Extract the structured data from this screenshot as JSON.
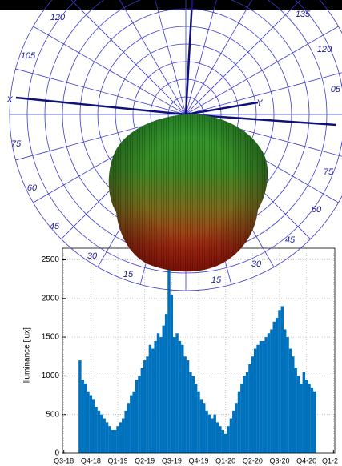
{
  "chart_data": {
    "type": "bar",
    "y_label": "Illuminance [lux]",
    "x": [
      0.6,
      0.7,
      0.8,
      0.9,
      1.0,
      1.1,
      1.2,
      1.3,
      1.4,
      1.5,
      1.6,
      1.7,
      1.8,
      1.9,
      2.0,
      2.1,
      2.2,
      2.3,
      2.4,
      2.5,
      2.6,
      2.7,
      2.8,
      2.9,
      3.0,
      3.1,
      3.2,
      3.3,
      3.4,
      3.5,
      3.6,
      3.7,
      3.8,
      3.9,
      4.0,
      4.1,
      4.2,
      4.3,
      4.4,
      4.5,
      4.6,
      4.7,
      4.8,
      4.9,
      5.0,
      5.1,
      5.2,
      5.3,
      5.4,
      5.5,
      5.6,
      5.7,
      5.8,
      5.9,
      6.0,
      6.1,
      6.2,
      6.3,
      6.4,
      6.5,
      6.6,
      6.7,
      6.8,
      6.9,
      7.0,
      7.1,
      7.2,
      7.3,
      7.4,
      7.5,
      7.6,
      7.7,
      7.8,
      7.9,
      8.0,
      8.1,
      8.2,
      8.3,
      8.4,
      8.5,
      8.6,
      8.7,
      8.8,
      8.9,
      9.0,
      9.1,
      9.2,
      9.3
    ],
    "values": [
      1200,
      950,
      900,
      800,
      750,
      700,
      600,
      550,
      500,
      450,
      400,
      350,
      300,
      300,
      350,
      400,
      450,
      550,
      650,
      750,
      800,
      950,
      1000,
      1100,
      1200,
      1250,
      1400,
      1350,
      1450,
      1550,
      1500,
      1650,
      1800,
      2400,
      2050,
      1500,
      1550,
      1450,
      1400,
      1250,
      1200,
      1050,
      1000,
      900,
      800,
      700,
      650,
      550,
      500,
      450,
      500,
      400,
      350,
      300,
      250,
      350,
      450,
      550,
      650,
      800,
      900,
      1000,
      1050,
      1150,
      1250,
      1350,
      1400,
      1450,
      1450,
      1500,
      1550,
      1600,
      1700,
      1750,
      1850,
      1900,
      1600,
      1500,
      1350,
      1250,
      1100,
      1000,
      900,
      1050,
      950,
      900,
      850,
      800
    ],
    "color": "#0072bd",
    "xlim": [
      -0.05,
      10.05
    ],
    "xticks": [
      {
        "value": 0,
        "label": "Q3-18"
      },
      {
        "value": 1,
        "label": "Q4-18"
      },
      {
        "value": 2,
        "label": "Q1-19"
      },
      {
        "value": 3,
        "label": "Q2-19"
      },
      {
        "value": 4,
        "label": "Q3-19"
      },
      {
        "value": 5,
        "label": "Q4-19"
      },
      {
        "value": 6,
        "label": "Q1-20"
      },
      {
        "value": 7,
        "label": "Q2-20"
      },
      {
        "value": 8,
        "label": "Q3-20"
      },
      {
        "value": 9,
        "label": "Q4-20"
      },
      {
        "value": 10,
        "label": "Q1-2"
      }
    ],
    "ylim": [
      0,
      2650
    ],
    "yticks": [
      0,
      500,
      1000,
      1500,
      2000,
      2500
    ],
    "grid": true
  },
  "polar": {
    "labels": [
      "120",
      "135",
      "105",
      "120",
      "05",
      "X",
      "75",
      "75",
      "60",
      "60",
      "45",
      "45",
      "30",
      "30",
      "15",
      "15",
      "Y"
    ]
  }
}
